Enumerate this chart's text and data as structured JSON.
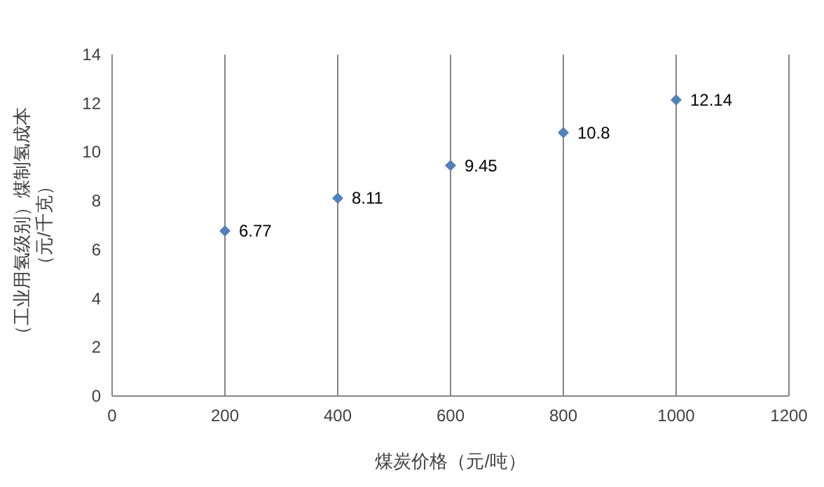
{
  "chart_data": {
    "type": "scatter",
    "xlabel": "煤炭价格（元/吨）",
    "ylabel": [
      "（工业用氢级别）煤制氢成本",
      "（元/千克）"
    ],
    "x": [
      200,
      400,
      600,
      800,
      1000
    ],
    "series": [
      {
        "color": "#4f81bd",
        "values": [
          6.77,
          8.11,
          9.45,
          10.8,
          12.14
        ]
      }
    ],
    "xlim": [
      0,
      1200
    ],
    "xticks": [
      0,
      200,
      400,
      600,
      800,
      1000,
      1200
    ],
    "ylim": [
      0,
      14
    ],
    "yticks": [
      0,
      2,
      4,
      6,
      8,
      10,
      12,
      14
    ],
    "grid": "x",
    "marker": "diamond",
    "data_labels": true
  }
}
